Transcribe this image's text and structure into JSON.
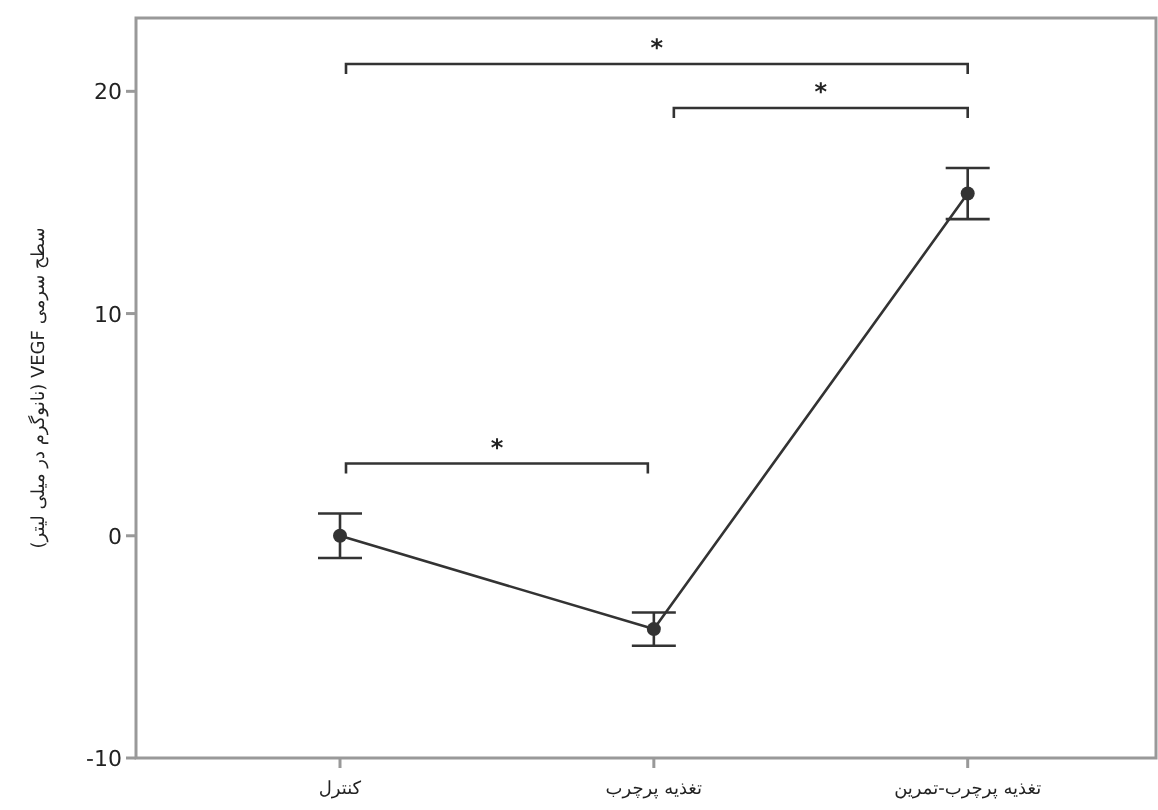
{
  "chart_data": {
    "type": "line",
    "ylabel": "سطح سرمی VEGF (نانوگرم در میلی لیتر)",
    "categories": [
      "کنترل",
      "تغذیه پرچرب",
      "تغذیه پرچرب-تمرین"
    ],
    "values": [
      0,
      -4.2,
      15.4
    ],
    "errors": [
      1,
      0.75,
      1.15
    ],
    "color": "#333333",
    "marker": "circle",
    "line_style": "solid",
    "grid": false,
    "ylim": [
      -10,
      23.3
    ],
    "yticks": [
      -10,
      0,
      10,
      20
    ],
    "annotations": [
      "*",
      "*",
      "*"
    ]
  }
}
